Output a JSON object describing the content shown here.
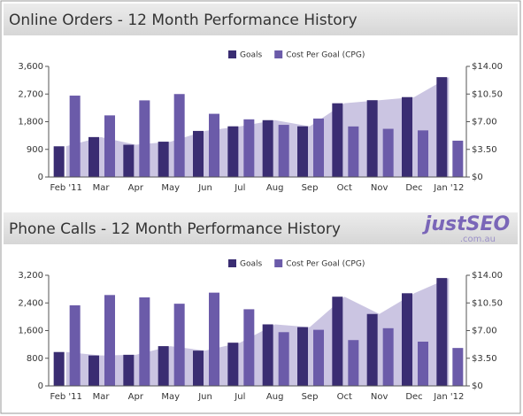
{
  "chart_data": [
    {
      "type": "bar",
      "title": "Online Orders - 12 Month Performance History",
      "categories": [
        "Feb '11",
        "Mar",
        "Apr",
        "May",
        "Jun",
        "Jul",
        "Aug",
        "Sep",
        "Oct",
        "Nov",
        "Dec",
        "Jan '12"
      ],
      "series": [
        {
          "name": "Goals",
          "color": "#3a2d72",
          "area_color": "#cbc5e2",
          "values": [
            1000,
            1300,
            1050,
            1150,
            1500,
            1650,
            1850,
            1650,
            2400,
            2500,
            2600,
            3250
          ]
        },
        {
          "name": "Cost Per Goal (CPG)",
          "color": "#6b5ba9",
          "axis": "y2",
          "values": [
            10.3,
            7.8,
            9.7,
            10.5,
            8.0,
            7.3,
            6.6,
            7.4,
            6.4,
            6.1,
            5.9,
            4.6
          ]
        }
      ],
      "ylim": [
        0,
        3600
      ],
      "yticks": [
        0,
        900,
        {
          "value": 1800,
          "label": "1,800"
        },
        {
          "value": 2700,
          "label": "2,700"
        },
        {
          "value": 3600,
          "label": "3,600"
        }
      ],
      "y2lim": [
        0,
        14
      ],
      "y2ticks": [
        {
          "value": 0,
          "label": "$0"
        },
        {
          "value": 3.5,
          "label": "$3.50"
        },
        {
          "value": 7,
          "label": "$7.00"
        },
        {
          "value": 10.5,
          "label": "$10.50"
        },
        {
          "value": 14,
          "label": "$14.00"
        }
      ],
      "grid": false
    },
    {
      "type": "bar",
      "title": "Phone Calls - 12 Month Performance History",
      "categories": [
        "Feb '11",
        "Mar",
        "Apr",
        "May",
        "Jun",
        "Jul",
        "Aug",
        "Sep",
        "Oct",
        "Nov",
        "Dec",
        "Jan '12"
      ],
      "series": [
        {
          "name": "Goals",
          "color": "#3a2d72",
          "area_color": "#cbc5e2",
          "values": [
            980,
            880,
            900,
            1150,
            1020,
            1250,
            1780,
            1700,
            2580,
            2080,
            2680,
            3120
          ]
        },
        {
          "name": "Cost Per Goal (CPG)",
          "color": "#6b5ba9",
          "axis": "y2",
          "values": [
            10.2,
            11.5,
            11.2,
            10.4,
            11.8,
            9.7,
            6.8,
            7.1,
            5.8,
            7.3,
            5.6,
            4.8
          ]
        }
      ],
      "ylim": [
        0,
        3200
      ],
      "yticks": [
        0,
        800,
        {
          "value": 1600,
          "label": "1,600"
        },
        {
          "value": 2400,
          "label": "2,400"
        },
        {
          "value": 3200,
          "label": "3,200"
        }
      ],
      "y2lim": [
        0,
        14
      ],
      "y2ticks": [
        {
          "value": 0,
          "label": "$0"
        },
        {
          "value": 3.5,
          "label": "$3.50"
        },
        {
          "value": 7,
          "label": "$7.00"
        },
        {
          "value": 10.5,
          "label": "$10.50"
        },
        {
          "value": 14,
          "label": "$14.00"
        }
      ],
      "grid": false
    }
  ],
  "logo": {
    "name": "justSEO",
    "domain": ".com.au"
  }
}
